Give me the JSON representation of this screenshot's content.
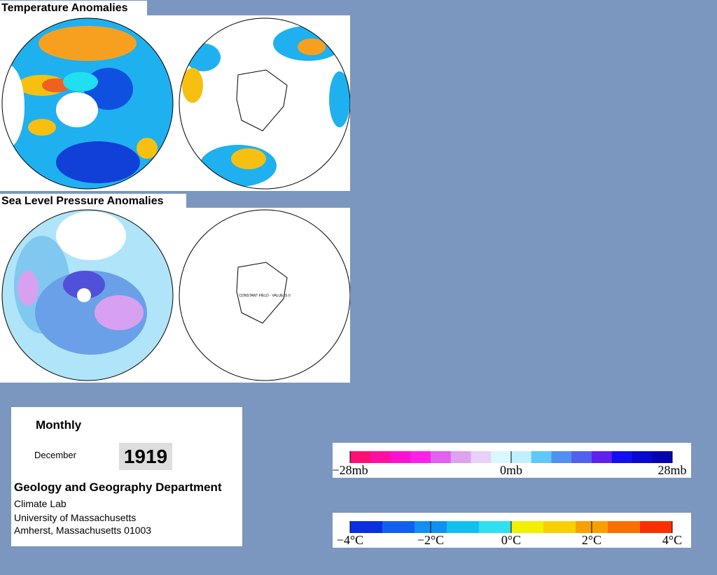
{
  "panels": [
    {
      "title": "Temperature Anomalies"
    },
    {
      "title": "Sea Level Pressure Anomalies",
      "note": "CONSTANT FIELD - VALUE IS 0"
    }
  ],
  "info": {
    "period": "Monthly",
    "month": "December",
    "year": "1919",
    "department": "Geology and Geography Department",
    "lines": [
      "Climate Lab",
      "University of Massachusetts",
      "Amherst, Massachusetts 01003"
    ]
  },
  "pressure_scale": {
    "labels": [
      "−28mb",
      "0mb",
      "28mb"
    ]
  },
  "temperature_scale": {
    "labels": [
      "−4°C",
      "−2°C",
      "0°C",
      "2°C",
      "4°C"
    ]
  }
}
